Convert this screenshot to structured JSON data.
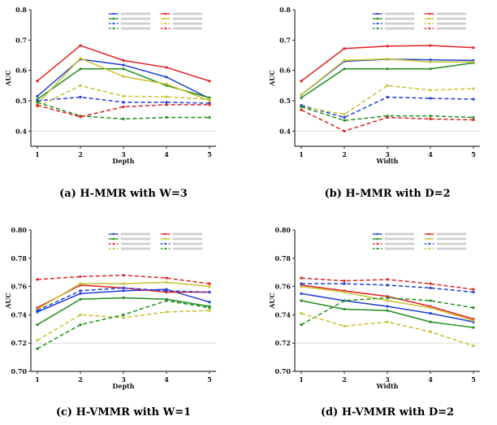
{
  "chart_data": [
    {
      "type": "line",
      "caption": "(a) H-MMR with W=3",
      "xlabel": "Depth",
      "ylabel": "AUC",
      "x": [
        1,
        2,
        3,
        4,
        5
      ],
      "ylim": [
        0.35,
        0.8
      ],
      "yticks": [
        0.4,
        0.5,
        0.6,
        0.7,
        0.8
      ],
      "ytick_labels": [
        "0.4",
        "0.5",
        "0.6",
        "0.7",
        "0.8"
      ],
      "series": [
        {
          "color": "#1f3fd6",
          "dash": false,
          "values": [
            0.515,
            0.637,
            0.618,
            0.578,
            0.508
          ]
        },
        {
          "color": "#e02020",
          "dash": false,
          "values": [
            0.565,
            0.682,
            0.633,
            0.61,
            0.565
          ]
        },
        {
          "color": "#1f8f1f",
          "dash": false,
          "values": [
            0.505,
            0.605,
            0.605,
            0.55,
            0.51
          ]
        },
        {
          "color": "#c8c030",
          "dash": false,
          "values": [
            0.49,
            0.64,
            0.58,
            0.555,
            0.5
          ]
        },
        {
          "color": "#1f3fd6",
          "dash": true,
          "values": [
            0.5,
            0.512,
            0.495,
            0.495,
            0.492
          ]
        },
        {
          "color": "#c8c030",
          "dash": true,
          "values": [
            0.48,
            0.55,
            0.515,
            0.513,
            0.505
          ]
        },
        {
          "color": "#1f8f1f",
          "dash": true,
          "values": [
            0.495,
            0.45,
            0.44,
            0.445,
            0.445
          ]
        },
        {
          "color": "#e02020",
          "dash": true,
          "values": [
            0.485,
            0.447,
            0.48,
            0.487,
            0.487
          ]
        }
      ]
    },
    {
      "type": "line",
      "caption": "(b) H-MMR with D=2",
      "xlabel": "Width",
      "ylabel": "AUC",
      "x": [
        1,
        2,
        3,
        4,
        5
      ],
      "ylim": [
        0.35,
        0.8
      ],
      "yticks": [
        0.4,
        0.5,
        0.6,
        0.7,
        0.8
      ],
      "ytick_labels": [
        "0.4",
        "0.5",
        "0.6",
        "0.7",
        "0.8"
      ],
      "series": [
        {
          "color": "#1f3fd6",
          "dash": false,
          "values": [
            0.52,
            0.63,
            0.637,
            0.635,
            0.633
          ]
        },
        {
          "color": "#e02020",
          "dash": false,
          "values": [
            0.565,
            0.672,
            0.68,
            0.682,
            0.675
          ]
        },
        {
          "color": "#1f8f1f",
          "dash": false,
          "values": [
            0.51,
            0.605,
            0.605,
            0.605,
            0.625
          ]
        },
        {
          "color": "#c8c030",
          "dash": false,
          "values": [
            0.52,
            0.633,
            0.638,
            0.628,
            0.628
          ]
        },
        {
          "color": "#1f3fd6",
          "dash": true,
          "values": [
            0.485,
            0.445,
            0.512,
            0.508,
            0.505
          ]
        },
        {
          "color": "#c8c030",
          "dash": true,
          "values": [
            0.48,
            0.455,
            0.55,
            0.535,
            0.54
          ]
        },
        {
          "color": "#1f8f1f",
          "dash": true,
          "values": [
            0.48,
            0.435,
            0.45,
            0.45,
            0.445
          ]
        },
        {
          "color": "#e02020",
          "dash": true,
          "values": [
            0.47,
            0.4,
            0.445,
            0.44,
            0.437
          ]
        }
      ]
    },
    {
      "type": "line",
      "caption": "(c) H-VMMR with W=1",
      "xlabel": "Depth",
      "ylabel": "AUC",
      "x": [
        1,
        2,
        3,
        4,
        5
      ],
      "ylim": [
        0.7,
        0.8
      ],
      "yticks": [
        0.7,
        0.72,
        0.74,
        0.76,
        0.78,
        0.8
      ],
      "ytick_labels": [
        "0.70",
        "0.72",
        "0.74",
        "0.76",
        "0.78",
        "0.80"
      ],
      "series": [
        {
          "color": "#1f3fd6",
          "dash": false,
          "values": [
            0.742,
            0.755,
            0.757,
            0.758,
            0.749
          ]
        },
        {
          "color": "#e02020",
          "dash": false,
          "values": [
            0.745,
            0.761,
            0.759,
            0.756,
            0.756
          ]
        },
        {
          "color": "#1f8f1f",
          "dash": false,
          "values": [
            0.733,
            0.751,
            0.752,
            0.751,
            0.746
          ]
        },
        {
          "color": "#c8c030",
          "dash": false,
          "values": [
            0.744,
            0.762,
            0.762,
            0.763,
            0.76
          ]
        },
        {
          "color": "#e02020",
          "dash": true,
          "values": [
            0.765,
            0.767,
            0.768,
            0.766,
            0.762
          ]
        },
        {
          "color": "#1f3fd6",
          "dash": true,
          "values": [
            0.743,
            0.757,
            0.759,
            0.757,
            0.756
          ]
        },
        {
          "color": "#c8c030",
          "dash": true,
          "values": [
            0.722,
            0.74,
            0.738,
            0.742,
            0.743
          ]
        },
        {
          "color": "#1f8f1f",
          "dash": true,
          "values": [
            0.716,
            0.733,
            0.74,
            0.75,
            0.745
          ]
        }
      ]
    },
    {
      "type": "line",
      "caption": "(d) H-VMMR with D=2",
      "xlabel": "Width",
      "ylabel": "AUC",
      "x": [
        1,
        2,
        3,
        4,
        5
      ],
      "ylim": [
        0.7,
        0.8
      ],
      "yticks": [
        0.7,
        0.72,
        0.74,
        0.76,
        0.78,
        0.8
      ],
      "ytick_labels": [
        "0.70",
        "0.72",
        "0.74",
        "0.76",
        "0.78",
        "0.80"
      ],
      "series": [
        {
          "color": "#1f3fd6",
          "dash": false,
          "values": [
            0.755,
            0.75,
            0.746,
            0.741,
            0.735
          ]
        },
        {
          "color": "#e02020",
          "dash": false,
          "values": [
            0.761,
            0.757,
            0.753,
            0.746,
            0.737
          ]
        },
        {
          "color": "#1f8f1f",
          "dash": false,
          "values": [
            0.75,
            0.744,
            0.743,
            0.735,
            0.731
          ]
        },
        {
          "color": "#c8c030",
          "dash": false,
          "values": [
            0.76,
            0.756,
            0.75,
            0.745,
            0.736
          ]
        },
        {
          "color": "#e02020",
          "dash": true,
          "values": [
            0.766,
            0.764,
            0.765,
            0.762,
            0.758
          ]
        },
        {
          "color": "#1f3fd6",
          "dash": true,
          "values": [
            0.762,
            0.762,
            0.761,
            0.759,
            0.756
          ]
        },
        {
          "color": "#1f8f1f",
          "dash": true,
          "values": [
            0.733,
            0.75,
            0.752,
            0.75,
            0.745
          ]
        },
        {
          "color": "#c8c030",
          "dash": true,
          "values": [
            0.741,
            0.732,
            0.735,
            0.728,
            0.718
          ]
        }
      ]
    }
  ]
}
